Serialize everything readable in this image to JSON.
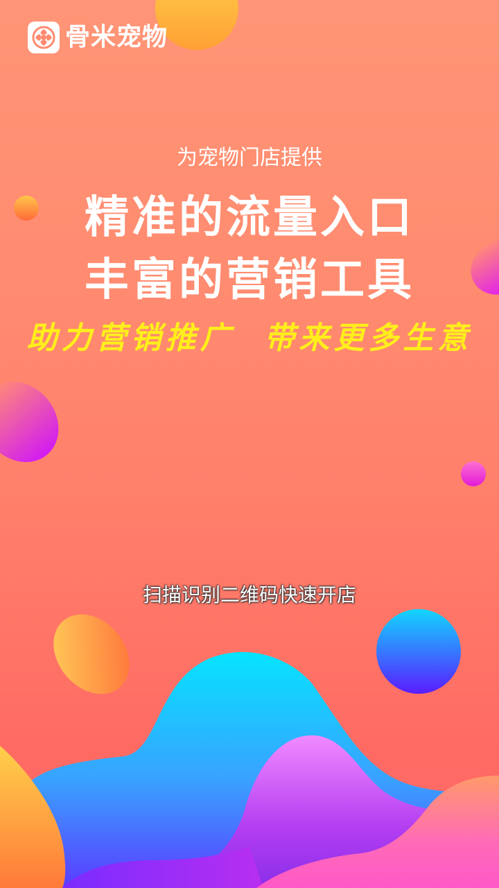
{
  "brand": {
    "name": "骨米宠物",
    "icon": "pet-logo-icon"
  },
  "hero": {
    "subtitle": "为宠物门店提供",
    "headline_line1": "精准的流量入口",
    "headline_line2": "丰富的营销工具",
    "tagline": "助力营销推广  带来更多生意"
  },
  "footer": {
    "scan_hint": "扫描识别二维码快速开店"
  },
  "colors": {
    "accent_yellow": "#ffee1c",
    "background_top": "#ff9576",
    "background_bottom": "#ff6c6a"
  }
}
